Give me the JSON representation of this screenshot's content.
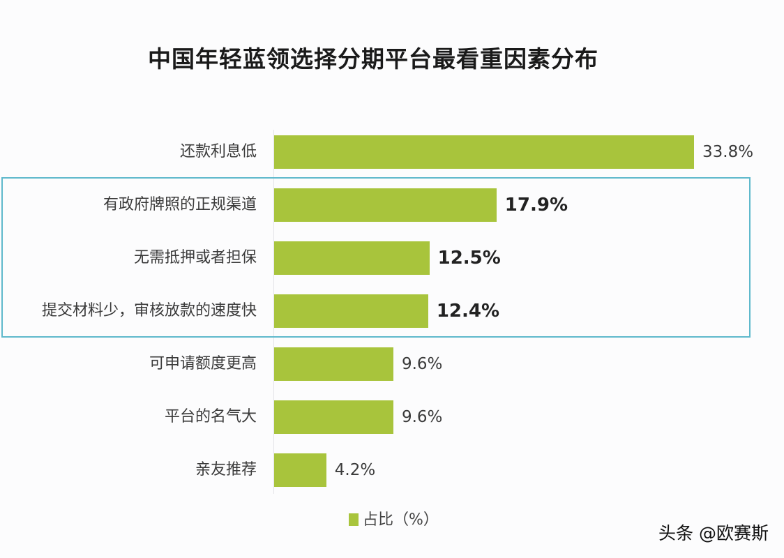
{
  "title": "中国年轻蓝领选择分期平台最看重因素分布",
  "legend": {
    "label": "占比（%）",
    "color": "#a8c43c"
  },
  "watermark": "头条 @欧赛斯",
  "highlight_color": "#5fb9cc",
  "bars": [
    {
      "label": "还款利息低",
      "value": 33.8,
      "value_label": "33.8%",
      "highlighted": false
    },
    {
      "label": "有政府牌照的正规渠道",
      "value": 17.9,
      "value_label": "17.9%",
      "highlighted": true
    },
    {
      "label": "无需抵押或者担保",
      "value": 12.5,
      "value_label": "12.5%",
      "highlighted": true
    },
    {
      "label": "提交材料少，审核放款的速度快",
      "value": 12.4,
      "value_label": "12.4%",
      "highlighted": true
    },
    {
      "label": "可申请额度更高",
      "value": 9.6,
      "value_label": "9.6%",
      "highlighted": false
    },
    {
      "label": "平台的名气大",
      "value": 9.6,
      "value_label": "9.6%",
      "highlighted": false
    },
    {
      "label": "亲友推荐",
      "value": 4.2,
      "value_label": "4.2%",
      "highlighted": false
    }
  ],
  "chart_data": {
    "type": "bar",
    "orientation": "horizontal",
    "title": "中国年轻蓝领选择分期平台最看重因素分布",
    "categories": [
      "还款利息低",
      "有政府牌照的正规渠道",
      "无需抵押或者担保",
      "提交材料少，审核放款的速度快",
      "可申请额度更高",
      "平台的名气大",
      "亲友推荐"
    ],
    "series": [
      {
        "name": "占比（%）",
        "values": [
          33.8,
          17.9,
          12.5,
          12.4,
          9.6,
          9.6,
          4.2
        ]
      }
    ],
    "xlabel": "",
    "ylabel": "",
    "legend_position": "bottom",
    "grid": false,
    "annotations": [
      "Highlight box around 有政府牌照的正规渠道, 无需抵押或者担保, 提交材料少，审核放款的速度快"
    ]
  }
}
